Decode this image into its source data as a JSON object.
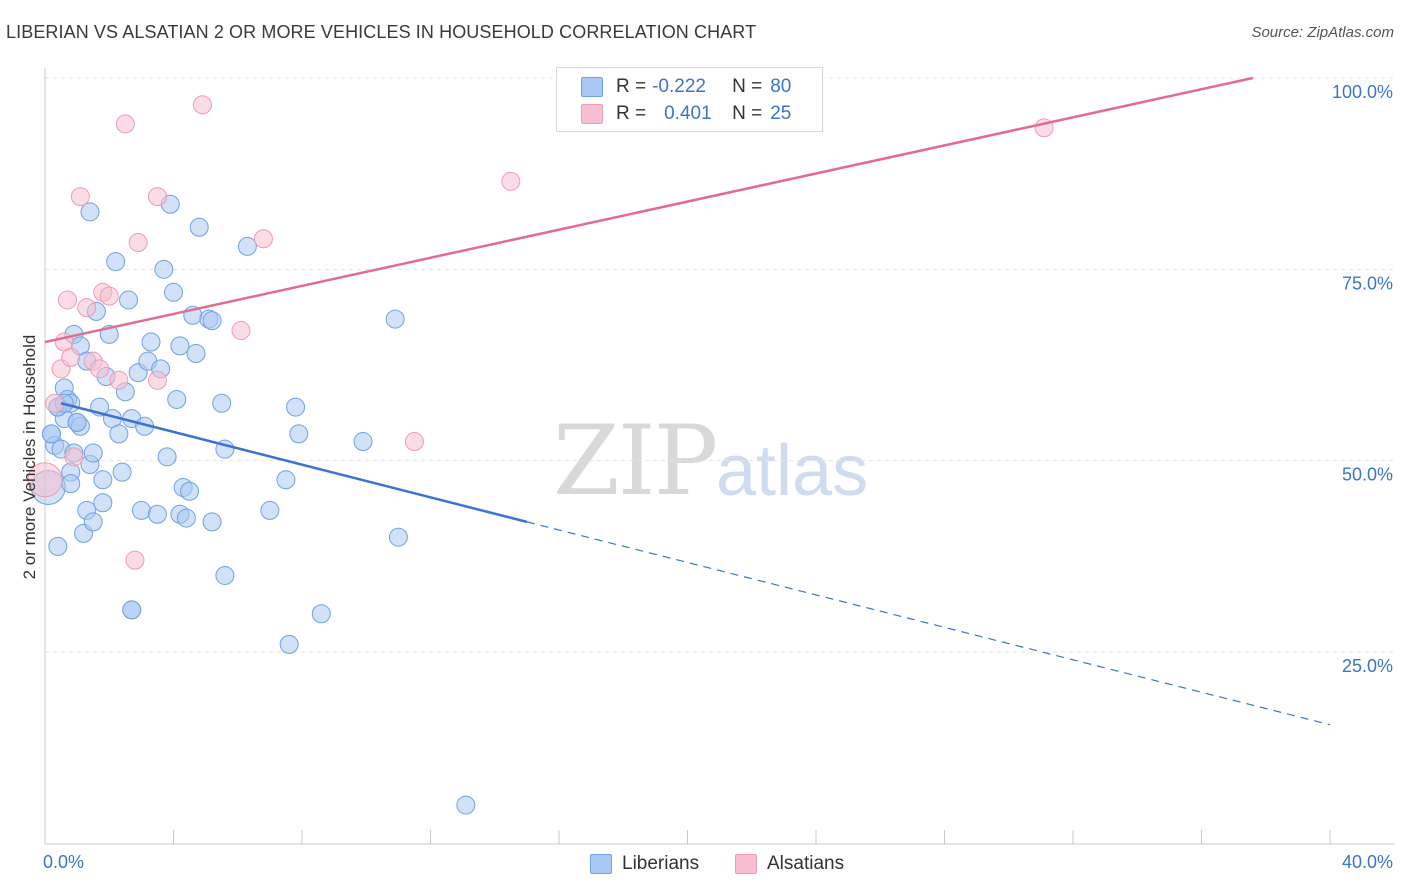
{
  "title": "LIBERIAN VS ALSATIAN 2 OR MORE VEHICLES IN HOUSEHOLD CORRELATION CHART",
  "source": "Source: ZipAtlas.com",
  "watermark": {
    "zip": "ZIP",
    "atlas": "atlas"
  },
  "legend": {
    "r_label": "R =",
    "n_label": "N =",
    "rows": [
      {
        "r": "-0.222",
        "n": "80",
        "color": "#a9c8f3"
      },
      {
        "r": "0.401",
        "n": "25",
        "color": "#f7bfd0"
      }
    ]
  },
  "bottom_legend": [
    {
      "label": "Liberians",
      "color": "#a9c8f3"
    },
    {
      "label": "Alsatians",
      "color": "#f7bfd0"
    }
  ],
  "chart_data": {
    "type": "scatter",
    "title": "LIBERIAN VS ALSATIAN 2 OR MORE VEHICLES IN HOUSEHOLD CORRELATION CHART",
    "xlabel": "",
    "ylabel": "2 or more Vehicles in Household",
    "xlim": [
      0,
      40
    ],
    "ylim": [
      0,
      105
    ],
    "x_tick_labels": [
      "0.0%",
      "40.0%"
    ],
    "y_ticks": [
      25,
      50,
      75,
      100
    ],
    "y_tick_labels": [
      "25.0%",
      "50.0%",
      "75.0%",
      "100.0%"
    ],
    "series": [
      {
        "name": "Liberians",
        "color": "#6fa1e3",
        "fill": "#a9c8f3",
        "r": -0.222,
        "n": 80,
        "trend": {
          "x0": 0.5,
          "y0": 57.5,
          "x1": 15.0,
          "y1": 42.0,
          "dash_to_x": 40,
          "dash_to_y": 15.5
        },
        "points": [
          [
            0.1,
            46.5
          ],
          [
            0.2,
            53.5
          ],
          [
            0.3,
            52.0
          ],
          [
            0.4,
            38.8
          ],
          [
            0.4,
            57.0
          ],
          [
            0.5,
            51.5
          ],
          [
            0.6,
            59.5
          ],
          [
            0.6,
            55.5
          ],
          [
            0.7,
            58.0
          ],
          [
            0.8,
            57.5
          ],
          [
            0.8,
            48.5
          ],
          [
            0.9,
            51.0
          ],
          [
            0.9,
            66.5
          ],
          [
            1.0,
            55.0
          ],
          [
            1.1,
            65.0
          ],
          [
            1.1,
            54.5
          ],
          [
            1.2,
            40.5
          ],
          [
            1.3,
            63.0
          ],
          [
            1.3,
            43.5
          ],
          [
            1.4,
            82.5
          ],
          [
            1.4,
            49.5
          ],
          [
            1.5,
            51.0
          ],
          [
            1.5,
            42.0
          ],
          [
            1.6,
            69.5
          ],
          [
            1.7,
            57.0
          ],
          [
            1.8,
            44.5
          ],
          [
            1.8,
            47.5
          ],
          [
            1.9,
            61.0
          ],
          [
            2.0,
            66.5
          ],
          [
            2.1,
            55.5
          ],
          [
            2.2,
            76.0
          ],
          [
            2.3,
            53.5
          ],
          [
            2.4,
            48.5
          ],
          [
            2.5,
            59.0
          ],
          [
            2.6,
            71.0
          ],
          [
            2.7,
            55.5
          ],
          [
            2.7,
            30.5
          ],
          [
            2.9,
            61.5
          ],
          [
            3.0,
            43.5
          ],
          [
            3.1,
            54.5
          ],
          [
            3.2,
            63.0
          ],
          [
            3.3,
            65.5
          ],
          [
            3.5,
            43.0
          ],
          [
            3.6,
            62.0
          ],
          [
            3.7,
            75.0
          ],
          [
            3.8,
            50.5
          ],
          [
            3.9,
            83.5
          ],
          [
            4.0,
            72.0
          ],
          [
            4.1,
            58.0
          ],
          [
            4.2,
            65.0
          ],
          [
            4.2,
            43.0
          ],
          [
            4.3,
            46.5
          ],
          [
            4.4,
            42.5
          ],
          [
            4.5,
            46.0
          ],
          [
            4.6,
            69.0
          ],
          [
            4.7,
            64.0
          ],
          [
            4.8,
            80.5
          ],
          [
            5.1,
            68.5
          ],
          [
            5.2,
            68.3
          ],
          [
            5.2,
            42.0
          ],
          [
            5.5,
            57.5
          ],
          [
            5.6,
            35.0
          ],
          [
            5.6,
            51.5
          ],
          [
            6.3,
            78.0
          ],
          [
            7.0,
            43.5
          ],
          [
            7.5,
            47.5
          ],
          [
            7.6,
            26.0
          ],
          [
            7.8,
            57.0
          ],
          [
            7.9,
            53.5
          ],
          [
            8.6,
            30.0
          ],
          [
            9.9,
            52.5
          ],
          [
            10.9,
            68.5
          ],
          [
            11.0,
            40.0
          ],
          [
            13.1,
            5.0
          ],
          [
            0.4,
            57.0
          ],
          [
            0.2,
            53.5
          ],
          [
            1.0,
            55.0
          ],
          [
            2.7,
            30.5
          ],
          [
            0.8,
            47.0
          ],
          [
            0.6,
            57.5
          ]
        ]
      },
      {
        "name": "Alsatians",
        "color": "#ee9ab4",
        "fill": "#f7bfd0",
        "r": 0.401,
        "n": 25,
        "trend": {
          "x0": 0.0,
          "y0": 65.5,
          "x1": 37.6,
          "y1": 100.0
        },
        "points": [
          [
            0.0,
            47.5
          ],
          [
            0.3,
            57.5
          ],
          [
            0.5,
            62.0
          ],
          [
            0.6,
            65.5
          ],
          [
            0.7,
            71.0
          ],
          [
            0.8,
            63.5
          ],
          [
            0.9,
            50.5
          ],
          [
            1.1,
            84.5
          ],
          [
            1.3,
            70.0
          ],
          [
            1.5,
            63.0
          ],
          [
            1.7,
            62.0
          ],
          [
            1.8,
            72.0
          ],
          [
            2.0,
            71.5
          ],
          [
            2.3,
            60.5
          ],
          [
            2.5,
            94.0
          ],
          [
            2.8,
            37.0
          ],
          [
            2.9,
            78.5
          ],
          [
            3.5,
            84.5
          ],
          [
            3.5,
            60.5
          ],
          [
            4.9,
            96.5
          ],
          [
            6.1,
            67.0
          ],
          [
            6.8,
            79.0
          ],
          [
            11.5,
            52.5
          ],
          [
            14.5,
            86.5
          ],
          [
            31.1,
            93.5
          ]
        ]
      }
    ]
  }
}
